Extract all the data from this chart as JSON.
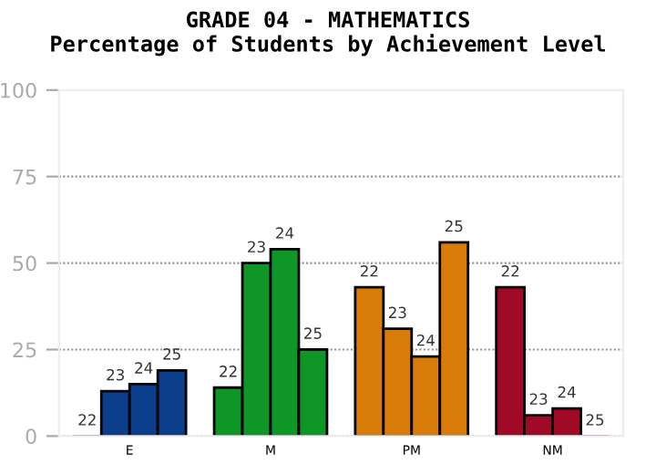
{
  "chart_data": {
    "type": "bar",
    "title": "GRADE 04 - MATHEMATICS",
    "subtitle": "Percentage of Students by Achievement Level",
    "categories": [
      "E",
      "M",
      "PM",
      "NM"
    ],
    "series": [
      {
        "name": "22",
        "colors": [
          "#0b3f8c",
          "#0e9626",
          "#d87b08",
          "#a10a26"
        ],
        "values": [
          0,
          14,
          43,
          43
        ]
      },
      {
        "name": "23",
        "colors": [
          "#0b3f8c",
          "#0e9626",
          "#d87b08",
          "#a10a26"
        ],
        "values": [
          13,
          50,
          31,
          6
        ]
      },
      {
        "name": "24",
        "colors": [
          "#0b3f8c",
          "#0e9626",
          "#d87b08",
          "#a10a26"
        ],
        "values": [
          15,
          54,
          23,
          8
        ]
      },
      {
        "name": "25",
        "colors": [
          "#0b3f8c",
          "#0e9626",
          "#d87b08",
          "#a10a26"
        ],
        "values": [
          19,
          25,
          56,
          0
        ]
      }
    ],
    "ylim": [
      0,
      100
    ],
    "yticks": [
      0,
      25,
      50,
      75,
      100
    ],
    "grid": "y",
    "legend": false
  }
}
